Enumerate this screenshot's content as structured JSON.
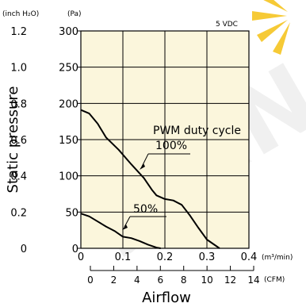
{
  "chart_data": {
    "type": "line",
    "voltage_label": "5 VDC",
    "watermark": "JIAN",
    "xlabel": "Airflow",
    "ylabel": "Static pressure",
    "x_unit_primary": "(m³/min)",
    "x_unit_secondary": "(CFM)",
    "y_unit_outer": "(inch H₂O)",
    "y_unit_inner": "(Pa)",
    "xlim": [
      0,
      0.4
    ],
    "ylim": [
      0,
      300
    ],
    "x_ticks_m3min": [
      "0",
      "0.1",
      "0.2",
      "0.3",
      "0.4"
    ],
    "x_ticks_cfm": [
      "0",
      "2",
      "4",
      "6",
      "8",
      "10",
      "12",
      "14"
    ],
    "y_ticks_pa": [
      "0",
      "50",
      "100",
      "150",
      "200",
      "250",
      "300"
    ],
    "y_ticks_inh2o": [
      "0",
      "0.2",
      "0.4",
      "0.6",
      "0.8",
      "1.0",
      "1.2"
    ],
    "grid": true,
    "annotation_title": "PWM duty cycle",
    "series": [
      {
        "name": "100%",
        "x": [
          0,
          0.02,
          0.04,
          0.06,
          0.09,
          0.12,
          0.15,
          0.17,
          0.18,
          0.2,
          0.22,
          0.24,
          0.26,
          0.28,
          0.3,
          0.33
        ],
        "y": [
          191,
          186,
          172,
          153,
          136,
          116,
          97,
          80,
          73,
          68,
          66,
          60,
          45,
          28,
          12,
          0
        ]
      },
      {
        "name": "50%",
        "x": [
          0,
          0.02,
          0.04,
          0.06,
          0.08,
          0.1,
          0.12,
          0.14,
          0.16,
          0.18,
          0.19
        ],
        "y": [
          48,
          44,
          37,
          30,
          24,
          16,
          14,
          10,
          5,
          1,
          0
        ]
      }
    ]
  }
}
